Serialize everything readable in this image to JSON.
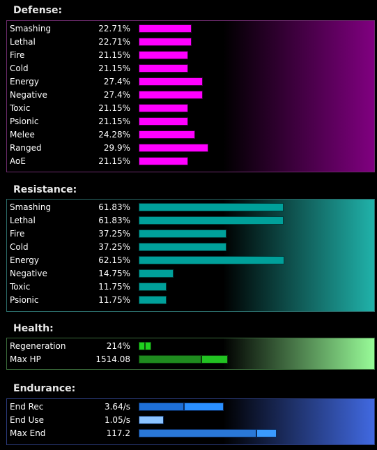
{
  "defense": {
    "title": "Defense:",
    "rows": [
      {
        "label": "Smashing",
        "value": "22.71%",
        "pct": 22.71
      },
      {
        "label": "Lethal",
        "value": "22.71%",
        "pct": 22.71
      },
      {
        "label": "Fire",
        "value": "21.15%",
        "pct": 21.15
      },
      {
        "label": "Cold",
        "value": "21.15%",
        "pct": 21.15
      },
      {
        "label": "Energy",
        "value": "27.4%",
        "pct": 27.4
      },
      {
        "label": "Negative",
        "value": "27.4%",
        "pct": 27.4
      },
      {
        "label": "Toxic",
        "value": "21.15%",
        "pct": 21.15
      },
      {
        "label": "Psionic",
        "value": "21.15%",
        "pct": 21.15
      },
      {
        "label": "Melee",
        "value": "24.28%",
        "pct": 24.28
      },
      {
        "label": "Ranged",
        "value": "29.9%",
        "pct": 29.9
      },
      {
        "label": "AoE",
        "value": "21.15%",
        "pct": 21.15
      }
    ],
    "bar_color": "#ff00ff",
    "gradient_color": "#800080"
  },
  "resistance": {
    "title": "Resistance:",
    "rows": [
      {
        "label": "Smashing",
        "value": "61.83%",
        "pct": 61.83
      },
      {
        "label": "Lethal",
        "value": "61.83%",
        "pct": 61.83
      },
      {
        "label": "Fire",
        "value": "37.25%",
        "pct": 37.25
      },
      {
        "label": "Cold",
        "value": "37.25%",
        "pct": 37.25
      },
      {
        "label": "Energy",
        "value": "62.15%",
        "pct": 62.15
      },
      {
        "label": "Negative",
        "value": "14.75%",
        "pct": 14.75
      },
      {
        "label": "Toxic",
        "value": "11.75%",
        "pct": 11.75
      },
      {
        "label": "Psionic",
        "value": "11.75%",
        "pct": 11.75
      }
    ],
    "bar_color": "#00a09a",
    "gradient_color": "#20b2aa"
  },
  "health": {
    "title": "Health:",
    "rows": [
      {
        "label": "Regeneration",
        "value": "214%"
      },
      {
        "label": "Max HP",
        "value": "1514.08"
      }
    ],
    "gradient_color": "#98fb98"
  },
  "endurance": {
    "title": "Endurance:",
    "rows": [
      {
        "label": "End Rec",
        "value": "3.64/s"
      },
      {
        "label": "End Use",
        "value": "1.05/s"
      },
      {
        "label": "Max End",
        "value": "117.2"
      }
    ],
    "gradient_color": "#4169e1"
  }
}
